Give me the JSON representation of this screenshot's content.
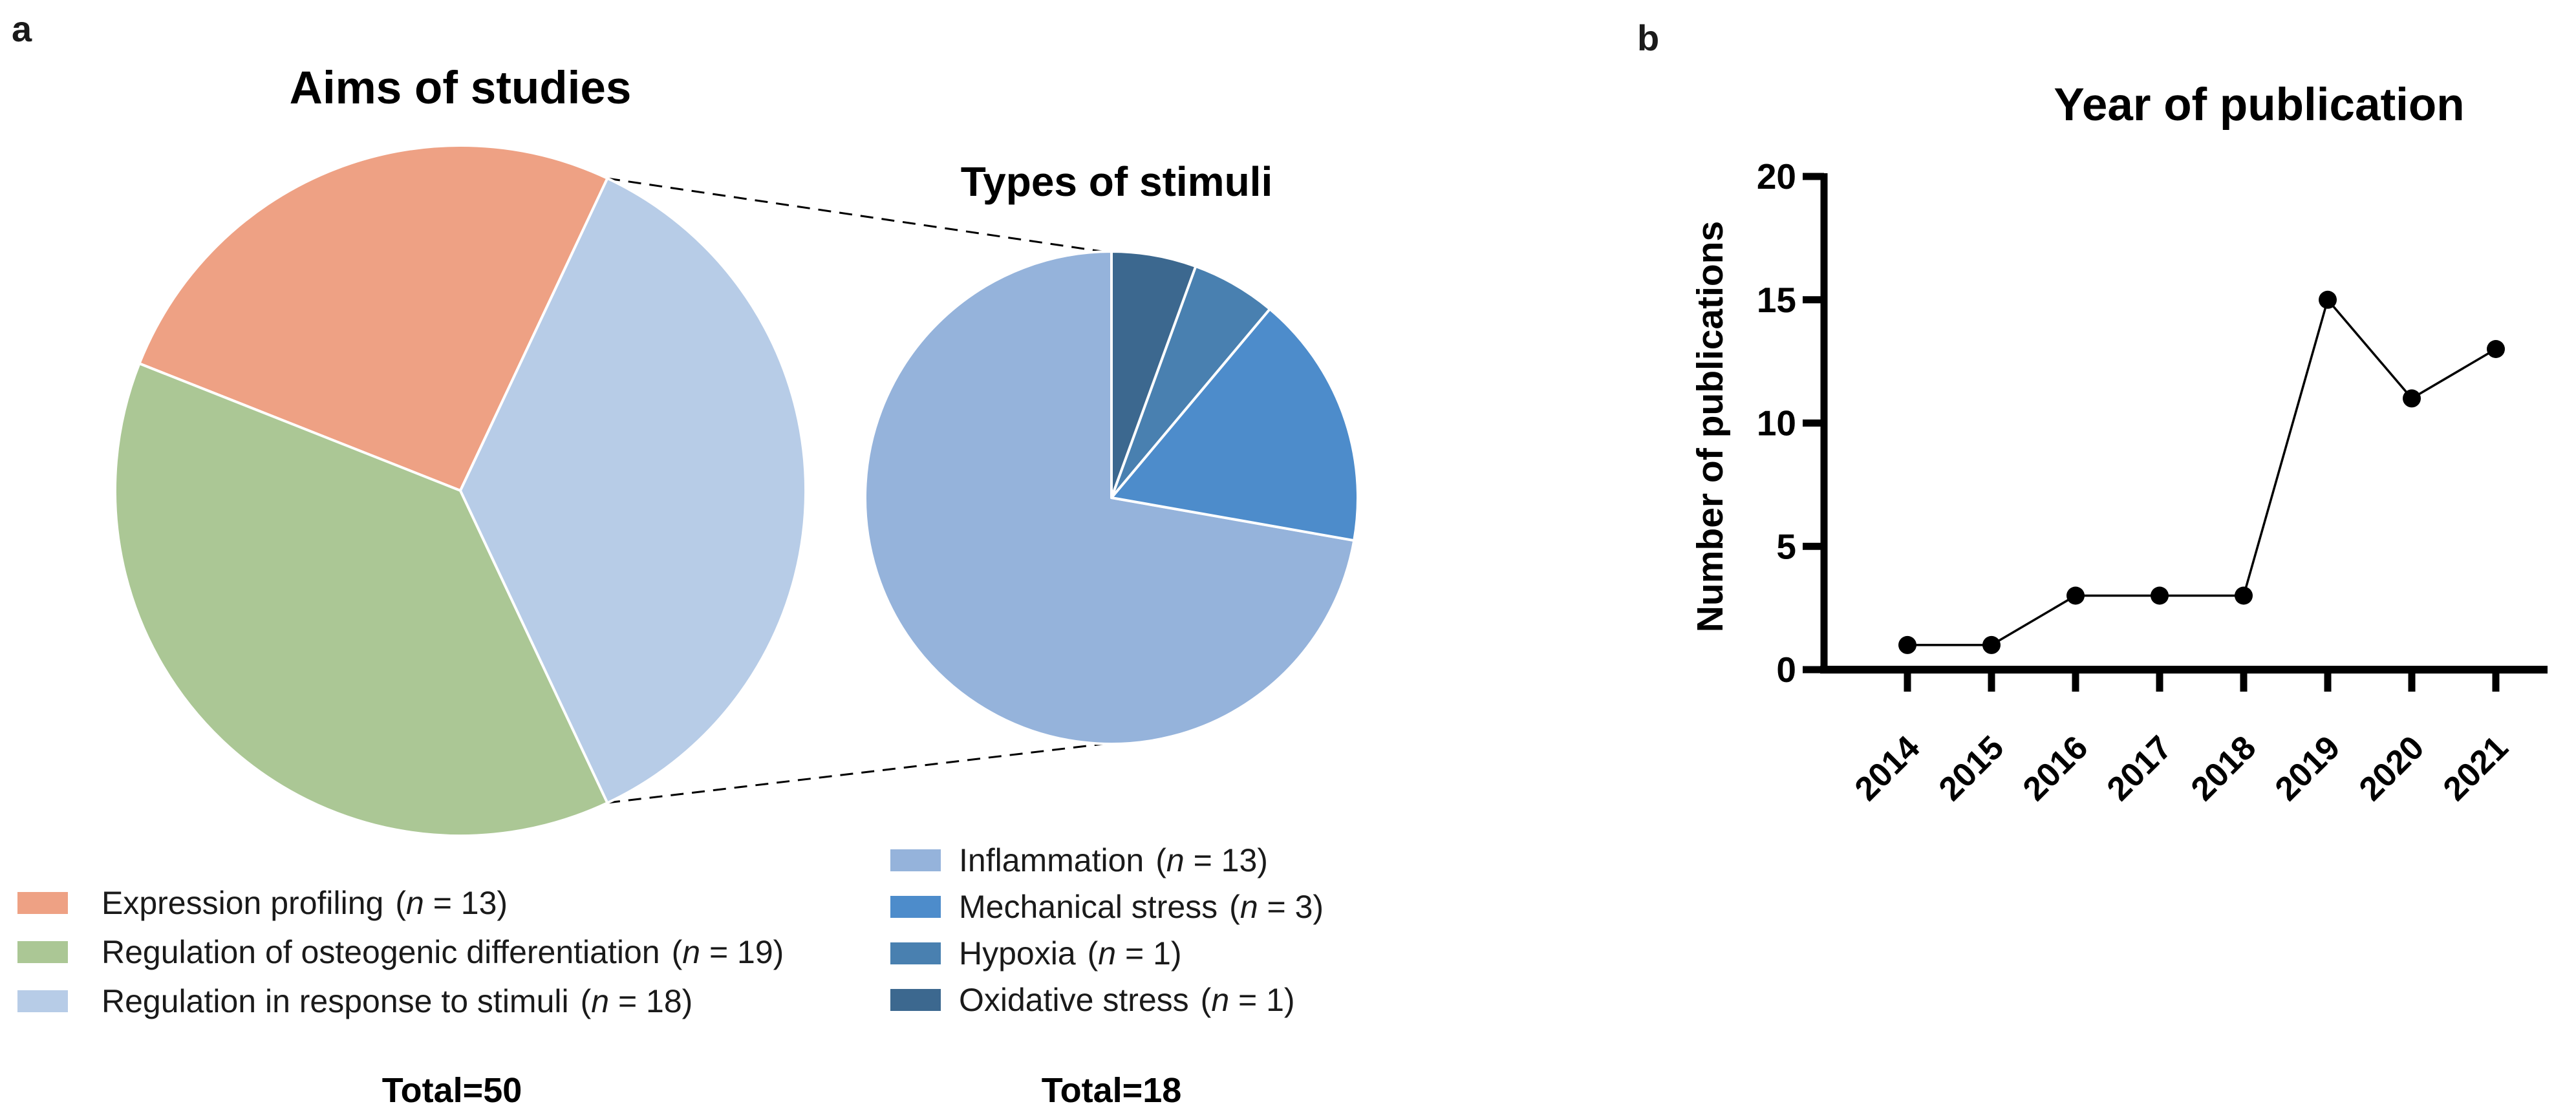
{
  "panel_labels": {
    "a": "a",
    "b": "b"
  },
  "legend_format": {
    "open": "(",
    "var": "n",
    "eq": " = ",
    "close": ")"
  },
  "chart_data": [
    {
      "type": "pie",
      "name": "aims-of-studies",
      "title": "Aims of studies",
      "total": 50,
      "total_label": "Total=50",
      "start_angle_deg": 25.2,
      "direction": "ccw-from-start",
      "legend_position": "bottom-left",
      "slices": [
        {
          "label": "Expression profiling",
          "n": 13,
          "color": "#EEA184"
        },
        {
          "label": "Regulation of osteogenic differentiation",
          "n": 19,
          "color": "#ABC795"
        },
        {
          "label": "Regulation in response to stimuli",
          "n": 18,
          "color": "#B7CCE7"
        }
      ]
    },
    {
      "type": "pie",
      "name": "types-of-stimuli",
      "title": "Types of stimuli",
      "total": 18,
      "total_label": "Total=18",
      "start_angle_deg": 0,
      "direction": "ccw-from-start",
      "legend_position": "bottom-right",
      "slices": [
        {
          "label": "Inflammation",
          "n": 13,
          "color": "#95B3DB"
        },
        {
          "label": "Mechanical stress",
          "n": 3,
          "color": "#4D8CCB"
        },
        {
          "label": "Hypoxia",
          "n": 1,
          "color": "#4980B0"
        },
        {
          "label": "Oxidative stress",
          "n": 1,
          "color": "#3C688F"
        }
      ]
    },
    {
      "type": "line",
      "name": "year-of-publication",
      "title": "Year of publication",
      "xlabel": "",
      "ylabel": "Number of publications",
      "categories": [
        "2014",
        "2015",
        "2016",
        "2017",
        "2018",
        "2019",
        "2020",
        "2021"
      ],
      "values": [
        1,
        1,
        3,
        3,
        3,
        15,
        11,
        13
      ],
      "yticks": [
        0,
        5,
        10,
        15,
        20
      ],
      "ylim": [
        0,
        20
      ],
      "line_color": "#000000",
      "marker": "filled-circle",
      "grid": false
    }
  ]
}
